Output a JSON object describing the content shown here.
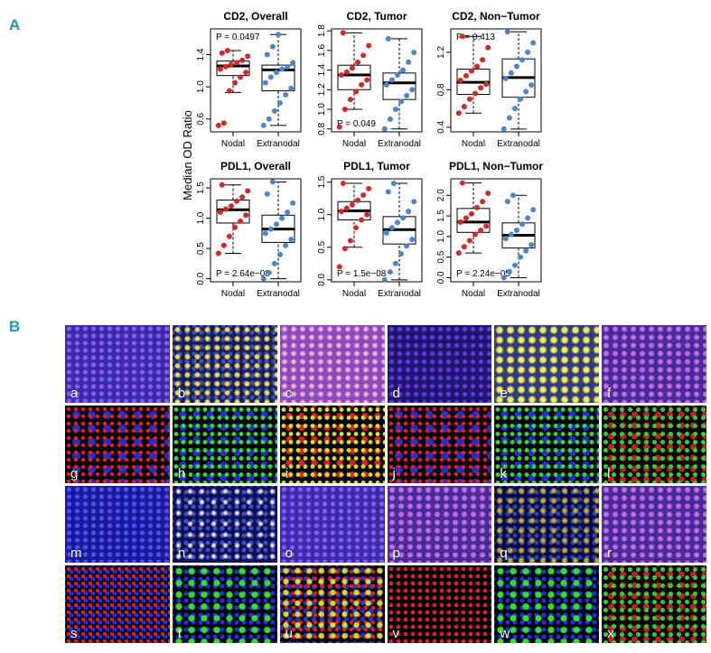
{
  "panel_labels": [
    "A",
    "B"
  ],
  "y_label": "Median OD Ratio",
  "chart_data": [
    {
      "type": "box",
      "title": "CD2, Overall",
      "annotation": "P = 0.0497",
      "ylim": [
        0.44,
        1.72
      ],
      "yticks": [
        0.6,
        {
          "value": 1,
          "label": "1.0"
        },
        1.4
      ],
      "series": [
        {
          "name": "Nodal",
          "color": "#d62728",
          "stats": [
            0.93,
            1.14,
            1.26,
            1.32,
            1.45
          ],
          "points": [
            0.52,
            0.55,
            0.95,
            1.05,
            1.12,
            1.18,
            1.22,
            1.25,
            1.28,
            1.3,
            1.33,
            1.38,
            1.42,
            1.45
          ]
        },
        {
          "name": "Extranodal",
          "color": "#4a86d0",
          "stats": [
            0.52,
            0.95,
            1.21,
            1.27,
            1.65
          ],
          "points": [
            0.52,
            0.6,
            0.7,
            0.8,
            0.9,
            0.98,
            1.05,
            1.12,
            1.18,
            1.22,
            1.25,
            1.3,
            1.4,
            1.5,
            1.65
          ]
        }
      ]
    },
    {
      "type": "box",
      "title": "CD2, Tumor",
      "annotation": "P = 0.049",
      "ylim": [
        0.77,
        1.82
      ],
      "yticks": [
        0.8,
        {
          "value": 1,
          "label": "1.0"
        },
        1.2,
        1.4,
        1.6,
        1.8
      ],
      "series": [
        {
          "name": "Nodal",
          "color": "#d62728",
          "stats": [
            1.0,
            1.2,
            1.35,
            1.45,
            1.78
          ],
          "points": [
            0.82,
            1.0,
            1.1,
            1.18,
            1.25,
            1.3,
            1.35,
            1.38,
            1.42,
            1.48,
            1.55,
            1.65,
            1.78
          ]
        },
        {
          "name": "Extranodal",
          "color": "#4a86d0",
          "stats": [
            0.8,
            1.1,
            1.27,
            1.37,
            1.72
          ],
          "points": [
            0.8,
            0.9,
            1.0,
            1.08,
            1.14,
            1.2,
            1.25,
            1.3,
            1.35,
            1.4,
            1.48,
            1.58,
            1.72
          ]
        }
      ]
    },
    {
      "type": "box",
      "title": "CD2, Non−Tumor",
      "annotation": "P = 0.413",
      "ylim": [
        0.35,
        1.45
      ],
      "yticks": [
        0.4,
        0.8,
        1.2
      ],
      "series": [
        {
          "name": "Nodal",
          "color": "#d62728",
          "stats": [
            0.55,
            0.75,
            0.88,
            1.02,
            1.37
          ],
          "points": [
            0.55,
            0.62,
            0.7,
            0.76,
            0.82,
            0.86,
            0.9,
            0.95,
            1.0,
            1.05,
            1.12,
            1.25,
            1.37
          ]
        },
        {
          "name": "Extranodal",
          "color": "#4a86d0",
          "stats": [
            0.38,
            0.72,
            0.93,
            1.13,
            1.42
          ],
          "points": [
            0.38,
            0.5,
            0.6,
            0.7,
            0.78,
            0.85,
            0.92,
            0.98,
            1.05,
            1.12,
            1.2,
            1.3,
            1.42
          ]
        }
      ]
    },
    {
      "type": "box",
      "title": "PDL1, Overall",
      "annotation": "P = 2.64e−08",
      "ylim": [
        -0.05,
        1.65
      ],
      "yticks": [
        {
          "value": 0,
          "label": "0.0"
        },
        0.5,
        {
          "value": 1,
          "label": "1.0"
        },
        1.5
      ],
      "series": [
        {
          "name": "Nodal",
          "color": "#d62728",
          "stats": [
            0.42,
            0.92,
            1.14,
            1.3,
            1.55
          ],
          "points": [
            0.42,
            0.55,
            0.7,
            0.85,
            0.95,
            1.05,
            1.1,
            1.15,
            1.2,
            1.28,
            1.35,
            1.45,
            1.55
          ]
        },
        {
          "name": "Extranodal",
          "color": "#4a86d0",
          "stats": [
            0,
            0.6,
            0.82,
            1.05,
            1.6
          ],
          "points": [
            0,
            0.1,
            0.25,
            0.4,
            0.55,
            0.65,
            0.75,
            0.82,
            0.9,
            1.0,
            1.1,
            1.25,
            1.4,
            1.6
          ]
        }
      ]
    },
    {
      "type": "box",
      "title": "PDL1, Tumor",
      "annotation": "P = 1.5e−08",
      "ylim": [
        -0.03,
        1.55
      ],
      "yticks": [
        {
          "value": 0,
          "label": "0.0"
        },
        0.5,
        {
          "value": 1,
          "label": "1.0"
        },
        1.5
      ],
      "series": [
        {
          "name": "Nodal",
          "color": "#d62728",
          "stats": [
            0.5,
            0.92,
            1.06,
            1.2,
            1.48
          ],
          "points": [
            0.2,
            0.48,
            0.6,
            0.8,
            0.92,
            1.0,
            1.05,
            1.1,
            1.15,
            1.22,
            1.3,
            1.4,
            1.48
          ]
        },
        {
          "name": "Extranodal",
          "color": "#4a86d0",
          "stats": [
            0,
            0.55,
            0.77,
            0.97,
            1.48
          ],
          "points": [
            0,
            0.12,
            0.25,
            0.4,
            0.52,
            0.62,
            0.72,
            0.8,
            0.88,
            0.95,
            1.05,
            1.2,
            1.35,
            1.48
          ]
        }
      ]
    },
    {
      "type": "box",
      "title": "PDL1, Non−Tumor",
      "annotation": "P = 2.24e−05",
      "ylim": [
        -0.1,
        2.4
      ],
      "yticks": [
        {
          "value": 0,
          "label": "0.0"
        },
        0.5,
        {
          "value": 1,
          "label": "1.0"
        },
        1.5,
        {
          "value": 2,
          "label": "2.0"
        }
      ],
      "series": [
        {
          "name": "Nodal",
          "color": "#d62728",
          "stats": [
            0.6,
            1.1,
            1.35,
            1.68,
            2.3
          ],
          "points": [
            0.6,
            0.75,
            0.9,
            1.05,
            1.15,
            1.25,
            1.35,
            1.45,
            1.55,
            1.7,
            1.85,
            2.05,
            2.3
          ]
        },
        {
          "name": "Extranodal",
          "color": "#4a86d0",
          "stats": [
            0,
            0.72,
            1.03,
            1.33,
            2.0
          ],
          "points": [
            0,
            0.15,
            0.3,
            0.5,
            0.65,
            0.8,
            0.95,
            1.05,
            1.15,
            1.3,
            1.45,
            1.65,
            1.85,
            2.0
          ]
        }
      ]
    }
  ],
  "image_labels": [
    "a",
    "b",
    "c",
    "d",
    "e",
    "f",
    "g",
    "h",
    "i",
    "j",
    "k",
    "l",
    "m",
    "n",
    "o",
    "p",
    "q",
    "r",
    "s",
    "t",
    "u",
    "v",
    "w",
    "x"
  ]
}
